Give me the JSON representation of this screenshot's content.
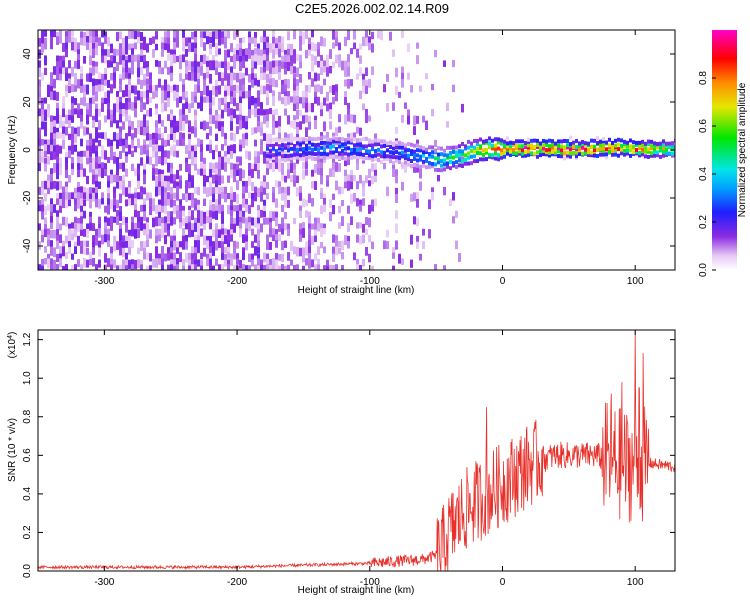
{
  "title": "C2E5.2026.002.02.14.R09",
  "chart_data": [
    {
      "type": "heatmap",
      "xlabel": "Height of straight line (km)",
      "ylabel": "Frequency (Hz)",
      "xlim": [
        -350,
        130
      ],
      "ylim": [
        -50,
        50
      ],
      "xticks": [
        -300,
        -200,
        -100,
        0,
        100
      ],
      "yticks": [
        -40,
        -20,
        0,
        20,
        40
      ],
      "grid": false,
      "colorbar": {
        "label": "Normalized spectral amplitude",
        "ticks": [
          "0.0",
          "0.2",
          "0.4",
          "0.6",
          "0.8"
        ],
        "range": [
          0,
          1
        ],
        "colormap": "white-violet-blue-cyan-green-yellow-red-magenta"
      },
      "center_track": {
        "x": [
          -175,
          -150,
          -125,
          -100,
          -80,
          -60,
          -45,
          -30,
          -20,
          -10,
          0,
          20,
          40,
          60,
          80,
          90,
          100,
          110,
          130
        ],
        "frequency": [
          0,
          0.5,
          1,
          0,
          -1,
          -3,
          -4,
          -2,
          0,
          0.5,
          0.5,
          0.5,
          0.5,
          0.5,
          1,
          1,
          0.5,
          0.5,
          0.5
        ],
        "peak_amplitude": [
          0.25,
          0.3,
          0.35,
          0.3,
          0.3,
          0.4,
          0.5,
          0.6,
          0.7,
          0.8,
          0.95,
          0.95,
          0.95,
          0.95,
          0.95,
          0.9,
          0.85,
          0.8,
          0.6
        ]
      }
    },
    {
      "type": "line",
      "xlabel": "Height of straight line (km)",
      "ylabel": "SNR (10 * v/v)",
      "y_multiplier": "(x10",
      "y_multiplier_exp": "4",
      "y_multiplier_close": ")",
      "xlim": [
        -350,
        130
      ],
      "ylim": [
        0,
        1.25
      ],
      "xticks": [
        -300,
        -200,
        -100,
        0,
        100
      ],
      "yticks": [
        "0.0",
        "0.2",
        "0.4",
        "0.6",
        "0.8",
        "1.0",
        "1.2"
      ],
      "grid": false,
      "color": "#e8302a",
      "series": [
        {
          "x": [
            -350,
            -300,
            -250,
            -200,
            -150,
            -100,
            -80,
            -60,
            -50,
            -45,
            -40,
            -35,
            -30,
            -25,
            -20,
            -15,
            -10,
            -5,
            0,
            10,
            20,
            30,
            40,
            50,
            60,
            70,
            80,
            90,
            100,
            105,
            110,
            120,
            130
          ],
          "values": [
            0.02,
            0.02,
            0.02,
            0.02,
            0.03,
            0.04,
            0.05,
            0.06,
            0.08,
            0.12,
            0.2,
            0.25,
            0.3,
            0.33,
            0.36,
            0.38,
            0.4,
            0.43,
            0.45,
            0.5,
            0.55,
            0.58,
            0.6,
            0.6,
            0.6,
            0.6,
            0.58,
            0.55,
            0.55,
            0.55,
            0.56,
            0.55,
            0.54
          ]
        }
      ],
      "spikes": [
        {
          "x": -12,
          "value": 0.85
        },
        {
          "x": 82,
          "value": 0.92
        },
        {
          "x": 90,
          "value": 0.98
        },
        {
          "x": 100,
          "value": 1.24
        },
        {
          "x": 103,
          "value": 0.95
        },
        {
          "x": 106,
          "value": 1.13
        }
      ]
    }
  ]
}
